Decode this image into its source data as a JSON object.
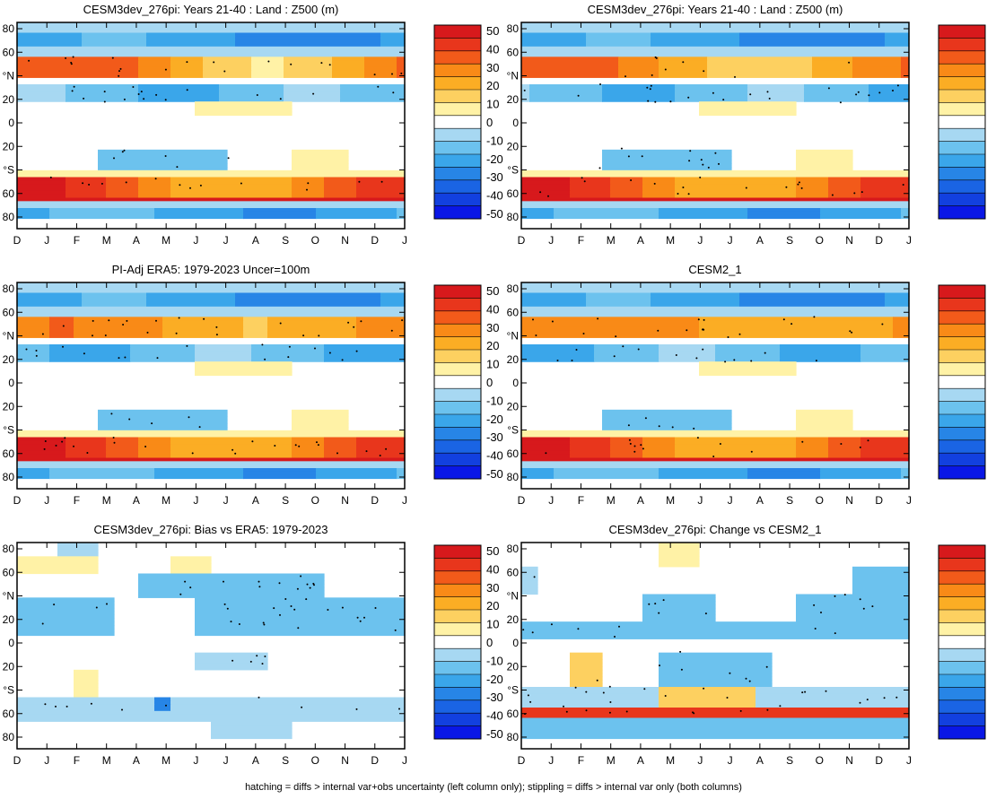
{
  "footnote": "hatching = diffs > internal var+obs uncertainty (left column only); stippling = diffs > internal var only (both columns)",
  "colorbar": {
    "levels": [
      "50",
      "40",
      "30",
      "20",
      "10",
      "0",
      "-10",
      "-20",
      "-30",
      "-40",
      "-50"
    ],
    "colors": [
      "#d7191c",
      "#e8361c",
      "#f25a1a",
      "#f98a17",
      "#fbad24",
      "#fdd060",
      "#fff2a6",
      "#ffffff",
      "#a7d8f2",
      "#6cc2ee",
      "#3aa6ea",
      "#2785e6",
      "#1a64e4",
      "#1240df",
      "#0a17e6"
    ]
  },
  "y_tick_labels": [
    "80",
    "60",
    "°N",
    "20",
    "0",
    "20",
    "°S",
    "60",
    "80"
  ],
  "x_tick_labels": [
    "D",
    "J",
    "F",
    "M",
    "A",
    "M",
    "J",
    "J",
    "A",
    "S",
    "O",
    "N",
    "D",
    "J"
  ],
  "chart_data": [
    {
      "type": "heatmap",
      "title": "CESM3dev_276pi: Years 21-40 : Land : Z500 (m)",
      "xlabel": "",
      "ylabel": "",
      "variant": "mean",
      "seed": 1,
      "ylim": [
        -90,
        90
      ]
    },
    {
      "type": "heatmap",
      "title": "CESM3dev_276pi: Years 21-40 : Land : Z500 (m)",
      "xlabel": "",
      "ylabel": "",
      "variant": "mean",
      "seed": 2,
      "ylim": [
        -90,
        90
      ]
    },
    {
      "type": "heatmap",
      "title": "PI-Adj ERA5: 1979-2023 Uncer=100m",
      "xlabel": "",
      "ylabel": "",
      "variant": "mean",
      "seed": 3,
      "ylim": [
        -90,
        90
      ]
    },
    {
      "type": "heatmap",
      "title": "CESM2_1",
      "xlabel": "",
      "ylabel": "",
      "variant": "mean",
      "seed": 4,
      "ylim": [
        -90,
        90
      ]
    },
    {
      "type": "heatmap",
      "title": "CESM3dev_276pi: Bias vs ERA5: 1979-2023",
      "xlabel": "",
      "ylabel": "",
      "variant": "bias",
      "seed": 5,
      "ylim": [
        -90,
        90
      ]
    },
    {
      "type": "heatmap",
      "title": "CESM3dev_276pi: Change vs CESM2_1",
      "xlabel": "",
      "ylabel": "",
      "variant": "change",
      "seed": 6,
      "ylim": [
        -90,
        90
      ]
    }
  ]
}
